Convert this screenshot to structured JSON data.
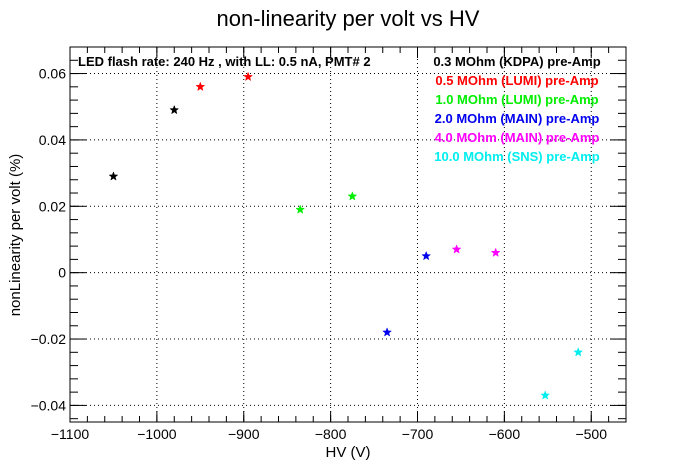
{
  "chart_data": {
    "type": "scatter",
    "title": "non-linearity per volt vs HV",
    "xlabel": "HV (V)",
    "ylabel": "nonLinearity per volt (%)",
    "xlim": [
      -1100,
      -460
    ],
    "ylim": [
      -0.045,
      0.068
    ],
    "x_ticks": [
      -1100,
      -1000,
      -900,
      -800,
      -700,
      -600,
      -500
    ],
    "x_tick_labels": [
      "−1100",
      "−1000",
      "−900",
      "−800",
      "−700",
      "−600",
      "−500"
    ],
    "y_ticks": [
      -0.04,
      -0.02,
      0,
      0.02,
      0.04,
      0.06
    ],
    "y_tick_labels": [
      "−0.04",
      "−0.02",
      "0",
      "0.02",
      "0.04",
      "0.06"
    ],
    "grid": true,
    "annotation": "LED flash rate: 240 Hz , with LL: 0.5 nA, PMT# 2",
    "legend_position": "top-right",
    "series": [
      {
        "name": "0.3 MOhm (KDPA) pre-Amp",
        "color": "#000000",
        "points": [
          [
            -1050,
            0.029
          ],
          [
            -980,
            0.049
          ]
        ]
      },
      {
        "name": "0.5 MOhm (LUMI) pre-Amp",
        "color": "#ff0000",
        "points": [
          [
            -950,
            0.056
          ],
          [
            -895,
            0.059
          ]
        ]
      },
      {
        "name": "1.0 MOhm (LUMI) pre-Amp",
        "color": "#00ee00",
        "points": [
          [
            -835,
            0.019
          ],
          [
            -775,
            0.023
          ]
        ]
      },
      {
        "name": "2.0 MOhm (MAIN) pre-Amp",
        "color": "#0000ee",
        "points": [
          [
            -735,
            -0.018
          ],
          [
            -690,
            0.005
          ]
        ]
      },
      {
        "name": "4.0 MOhm (MAIN) pre-Amp",
        "color": "#ff00ff",
        "points": [
          [
            -655,
            0.007
          ],
          [
            -610,
            0.006
          ]
        ]
      },
      {
        "name": "10.0 MOhm (SNS) pre-Amp",
        "color": "#00eeee",
        "points": [
          [
            -553,
            -0.037
          ],
          [
            -515,
            -0.024
          ]
        ]
      }
    ]
  }
}
